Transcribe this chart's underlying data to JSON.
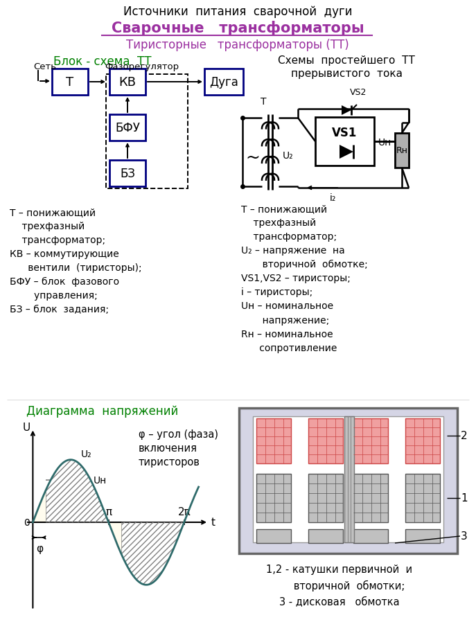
{
  "title1": "Источники  питания  сварочной  дуги",
  "title2": "Сварочные   трансформаторы",
  "title3": "Тиристорные   трансформаторы (ТТ)",
  "subtitle_left": "Блок - схема  ТТ",
  "subtitle_right": "Схемы  простейшего  ТТ\nпрерывистого  тока",
  "diagram_title": "Диаграмма  напряжений",
  "phi_text": "φ – угол (фаза)\nвключения\nтиристоров",
  "coil_legend": "1,2 - катушки первичной  и\n      вторичной  обмотки;\n3 - дисковая   обмотка",
  "left_desc": "Т – понижающий\n    трехфазный\n    трансформатор;\nКВ – коммутирующие\n      вентили  (тиристоры);\nБФУ – блок  фазового\n        управления;\nБЗ – блок  задания;",
  "right_desc_line1": "Т – понижающий",
  "right_desc_line2": "    трехфазный",
  "right_desc_line3": "    трансформатор;",
  "right_desc_line4": "U₂ – напряжение  на",
  "right_desc_line5": "       вторичной  обмотке;",
  "right_desc_line6": "VS1,VS2 – тиристоры;",
  "right_desc_line7": "i – тиристоры;",
  "right_desc_line8": "Uн – номинальное",
  "right_desc_line9": "       напряжение;",
  "right_desc_line10": "Rн – номинальное",
  "right_desc_line11": "      сопротивление",
  "purple": "#9B30A0",
  "green": "#008000",
  "navy": "#000080",
  "teal": "#2F6B6B",
  "black": "#000000",
  "gray": "#888888",
  "lightgray": "#d0d0d0",
  "pink": "#f4a0a0",
  "pink_edge": "#cc4444",
  "box_fill": "#d8d8e8"
}
